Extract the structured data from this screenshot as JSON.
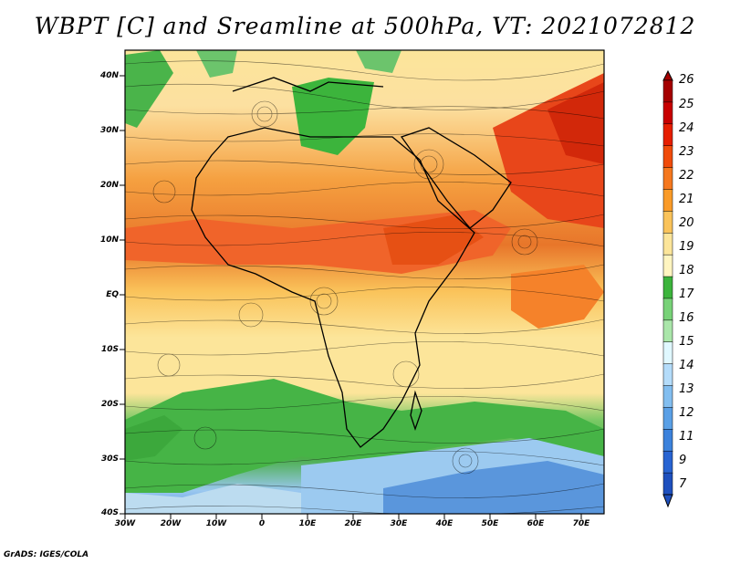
{
  "title": "WBPT [C] and Sreamline at 500hPa, VT: 2021072812",
  "credit": "GrADS: IGES/COLA",
  "map": {
    "lat_labels": [
      "40N",
      "30N",
      "20N",
      "10N",
      "EQ",
      "10S",
      "20S",
      "30S",
      "40S"
    ],
    "lon_labels": [
      "30W",
      "20W",
      "10W",
      "0",
      "10E",
      "20E",
      "30E",
      "40E",
      "50E",
      "60E",
      "70E"
    ]
  },
  "colorbar": {
    "levels": [
      "26",
      "25",
      "24",
      "23",
      "22",
      "21",
      "20",
      "19",
      "18",
      "17",
      "16",
      "15",
      "14",
      "13",
      "12",
      "11",
      "9",
      "7"
    ],
    "colors": [
      "#a50000",
      "#c80000",
      "#e61e00",
      "#f04b0a",
      "#f5781e",
      "#fa9b28",
      "#fac35a",
      "#fce59a",
      "#fff5c0",
      "#3cb43c",
      "#78d278",
      "#aae6aa",
      "#e0f8ff",
      "#b4dcfa",
      "#82bef0",
      "#5aa0e6",
      "#3c82dc",
      "#2864d2",
      "#1e50be"
    ]
  }
}
